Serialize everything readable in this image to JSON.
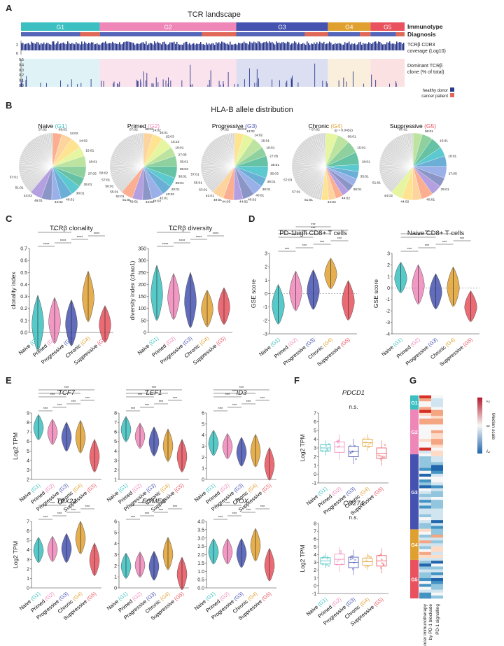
{
  "panels": {
    "A": {
      "letter": "A",
      "title": "TCR landscape",
      "groups": [
        {
          "label": "G1",
          "color": "#3bbfc0",
          "frac": 0.185
        },
        {
          "label": "G2",
          "color": "#ee86b8",
          "frac": 0.32
        },
        {
          "label": "G3",
          "color": "#4552b0",
          "frac": 0.215
        },
        {
          "label": "G4",
          "color": "#e0a030",
          "frac": 0.1
        },
        {
          "label": "G5",
          "color": "#e8515d",
          "frac": 0.08
        }
      ],
      "row_labels": {
        "immunotype": "Immunotype",
        "diagnosis": "Diagnosis"
      },
      "coverage": {
        "label": "TCRβ CDR3 coverage (Log10)",
        "ticks": [
          "2",
          "0"
        ]
      },
      "dominant": {
        "label": "Dominant TCRβ clone (% of total)",
        "ticks": [
          "0.5",
          "0.4",
          "0.3",
          "0.2",
          "0.1",
          "0.0"
        ]
      },
      "legend": [
        {
          "label": "healthy donor",
          "color": "#2a3a8c"
        },
        {
          "label": "cancer patient",
          "color": "#e06858"
        }
      ]
    },
    "B": {
      "letter": "B",
      "title": "HLA-B allele distribution",
      "pies": [
        {
          "name": "Naive",
          "group": "(G1)",
          "color": "#3bbfc0",
          "labels": [
            "07:02",
            "08:01",
            "13:02",
            "14:02",
            "15:01",
            "18:01",
            "27:05",
            "35:01",
            "38:01",
            "40:01",
            "44:02",
            "49:01",
            "44:03",
            "51:01",
            "57:01"
          ]
        },
        {
          "name": "Primed",
          "group": "(G2)",
          "color": "#ee86b8",
          "labels": [
            "07:02",
            "08:01",
            "14:02",
            "15:01",
            "15:03",
            "15:10",
            "18:01",
            "27:05",
            "35:01",
            "35:03",
            "38:01",
            "39:01",
            "40:01",
            "40:02",
            "42:01",
            "44:02",
            "44:03",
            "49:01",
            "51:01",
            "52:01",
            "55:01",
            "56:01",
            "57:01",
            "58:02"
          ]
        },
        {
          "name": "Progressive",
          "group": "(G3)",
          "color": "#4552b0",
          "labels": [
            "07:02",
            "08:01",
            "13:02",
            "14:02",
            "15:01",
            "18:01",
            "27:05",
            "35:01",
            "35:03",
            "38:01",
            "39:01",
            "40:01",
            "40:02",
            "44:02",
            "44:03",
            "49:01",
            "51:01",
            "53:01",
            "55:01",
            "57:01"
          ]
        },
        {
          "name": "Chronic",
          "group": "(G4)",
          "color": "#e0a030",
          "labels": [
            "* 07:02",
            "(p = 0.0452)",
            "08:01",
            "15:01",
            "18:01",
            "35:01",
            "38:01",
            "44:02",
            "44:03",
            "51:01",
            "57:01",
            "57:03"
          ]
        },
        {
          "name": "Suppressive",
          "group": "(G5)",
          "color": "#e8515d",
          "labels": [
            "07:02",
            "08:01",
            "15:01",
            "18:01",
            "27:05",
            "35:01",
            "40:01",
            "44:02",
            "44:03",
            "51:01"
          ]
        }
      ]
    },
    "C": {
      "letter": "C",
      "plots": [
        {
          "title": "TCRβ clonality",
          "ylabel": "clonality index",
          "ticks": [
            "0.0",
            "0.1",
            "0.2",
            "0.3",
            "0.4",
            "0.5",
            "0.6",
            "0.7"
          ],
          "sig": [
            "****",
            "****",
            "****",
            "****",
            "**"
          ]
        },
        {
          "title": "TCRβ diversity",
          "ylabel": "diversity index (chao1)",
          "ticks": [
            "0",
            "50",
            "100",
            "150",
            "200",
            "250",
            "300",
            "350"
          ],
          "sig": [
            "****",
            "****",
            "****",
            "****",
            "***"
          ]
        }
      ]
    },
    "D": {
      "letter": "D",
      "plots": [
        {
          "title": "PD-1high CD8+ T cells",
          "ylabel": "GSE score",
          "ticks": [
            "-3",
            "-2",
            "-1",
            "0",
            "1",
            "2",
            "3"
          ],
          "sig": [
            "***",
            "***",
            "***",
            "***",
            "***",
            "***",
            "***",
            "***"
          ]
        },
        {
          "title": "Naive CD8+ T cells",
          "ylabel": "GSE score",
          "ticks": [
            "-4",
            "-3",
            "-2",
            "-1",
            "0",
            "1",
            "2",
            "3"
          ],
          "sig": [
            "***",
            "***",
            "***",
            "***",
            "***",
            "***"
          ]
        }
      ]
    },
    "E": {
      "letter": "E",
      "ylabel": "Log2 TPM",
      "genes": [
        {
          "name": "TCF7",
          "ticks": [
            "2",
            "3",
            "4",
            "5",
            "6",
            "7",
            "8",
            "9"
          ]
        },
        {
          "name": "LEF1",
          "ticks": [
            "1",
            "2",
            "3",
            "4",
            "5",
            "6",
            "7",
            "8"
          ]
        },
        {
          "name": "ID3",
          "ticks": [
            "0",
            "1",
            "2",
            "3",
            "4",
            "5",
            "6"
          ]
        },
        {
          "name": "TBX21",
          "ticks": [
            "0",
            "1",
            "2",
            "3",
            "4",
            "5",
            "6",
            "7"
          ]
        },
        {
          "name": "EOMES",
          "ticks": [
            "0",
            "1",
            "2",
            "3",
            "4",
            "5",
            "6"
          ]
        },
        {
          "name": "TOX",
          "ticks": [
            "0.0",
            "0.5",
            "1.0",
            "1.5",
            "2.0",
            "2.5",
            "3.0",
            "3.5",
            "4.0"
          ]
        }
      ],
      "sig": "***"
    },
    "F": {
      "letter": "F",
      "ylabel": "Log2 TPM",
      "plots": [
        {
          "title": "PDCD1",
          "ns": "n.s.",
          "ticks": [
            "-1",
            "0",
            "1",
            "2",
            "3",
            "4",
            "5",
            "6",
            "7"
          ]
        },
        {
          "title": "CD274",
          "ns": "n.s.",
          "ticks": [
            "-1",
            "0",
            "1",
            "2",
            "3",
            "4",
            "5",
            "6",
            "7",
            "8"
          ]
        }
      ]
    },
    "G": {
      "letter": "G",
      "scale_label": "Median scale",
      "scale_ticks": [
        "2",
        "0",
        "-2"
      ],
      "columns": [
        "Cancer immunotherapy by PD-1 blockade",
        "PD-1 signalling"
      ]
    }
  },
  "categories": [
    {
      "name": "Naive",
      "group": "(G1)",
      "color": "#3bbfc0"
    },
    {
      "name": "Primed",
      "group": "(G2)",
      "color": "#ee86b8"
    },
    {
      "name": "Progressive",
      "group": "(G3)",
      "color": "#4552b0"
    },
    {
      "name": "Chronic",
      "group": "(G4)",
      "color": "#e0a030"
    },
    {
      "name": "Suppressive",
      "group": "(G5)",
      "color": "#e8515d"
    }
  ],
  "chart_data": [
    {
      "type": "violin",
      "title": "TCRβ clonality",
      "ylabel": "clonality index",
      "categories": [
        "Naive (G1)",
        "Primed (G2)",
        "Progressive (G3)",
        "Chronic (G4)",
        "Suppressive (G5)"
      ],
      "medians": [
        0.08,
        0.1,
        0.08,
        0.3,
        0.07
      ],
      "ylim": [
        0,
        0.7
      ]
    },
    {
      "type": "violin",
      "title": "TCRβ diversity",
      "ylabel": "diversity index (chao1)",
      "categories": [
        "Naive (G1)",
        "Primed (G2)",
        "Progressive (G3)",
        "Chronic (G4)",
        "Suppressive (G5)"
      ],
      "medians": [
        165,
        150,
        135,
        100,
        110
      ],
      "ylim": [
        0,
        350
      ]
    },
    {
      "type": "violin",
      "title": "PD-1high CD8+ T cells",
      "ylabel": "GSE score",
      "categories": [
        "Naive (G1)",
        "Primed (G2)",
        "Progressive (G3)",
        "Chronic (G4)",
        "Suppressive (G5)"
      ],
      "medians": [
        -0.8,
        0.2,
        0.3,
        1.5,
        -0.5
      ],
      "ylim": [
        -3,
        3
      ]
    },
    {
      "type": "violin",
      "title": "Naive CD8+ T cells",
      "ylabel": "GSE score",
      "categories": [
        "Naive (G1)",
        "Primed (G2)",
        "Progressive (G3)",
        "Chronic (G4)",
        "Suppressive (G5)"
      ],
      "medians": [
        0.9,
        0.3,
        -0.3,
        0.1,
        -1.6
      ],
      "ylim": [
        -4,
        3
      ]
    },
    {
      "type": "violin",
      "title": "TCF7",
      "ylabel": "Log2 TPM",
      "categories": [
        "Naive (G1)",
        "Primed (G2)",
        "Progressive (G3)",
        "Chronic (G4)",
        "Suppressive (G5)"
      ],
      "medians": [
        7.5,
        7.0,
        6.5,
        6.5,
        4.5
      ],
      "ylim": [
        2,
        9
      ]
    },
    {
      "type": "violin",
      "title": "LEF1",
      "ylabel": "Log2 TPM",
      "categories": [
        "Naive (G1)",
        "Primed (G2)",
        "Progressive (G3)",
        "Chronic (G4)",
        "Suppressive (G5)"
      ],
      "medians": [
        6.3,
        5.6,
        5.0,
        4.6,
        3.5
      ],
      "ylim": [
        1,
        8
      ]
    },
    {
      "type": "violin",
      "title": "ID3",
      "ylabel": "Log2 TPM",
      "categories": [
        "Naive (G1)",
        "Primed (G2)",
        "Progressive (G3)",
        "Chronic (G4)",
        "Suppressive (G5)"
      ],
      "medians": [
        3.3,
        3.0,
        2.5,
        2.6,
        1.4
      ],
      "ylim": [
        0,
        6
      ]
    },
    {
      "type": "violin",
      "title": "TBX21",
      "ylabel": "Log2 TPM",
      "categories": [
        "Naive (G1)",
        "Primed (G2)",
        "Progressive (G3)",
        "Chronic (G4)",
        "Suppressive (G5)"
      ],
      "medians": [
        4.0,
        4.1,
        4.2,
        5.3,
        3.0
      ],
      "ylim": [
        0,
        7
      ]
    },
    {
      "type": "violin",
      "title": "EOMES",
      "ylabel": "Log2 TPM",
      "categories": [
        "Naive (G1)",
        "Primed (G2)",
        "Progressive (G3)",
        "Chronic (G4)",
        "Suppressive (G5)"
      ],
      "medians": [
        2.0,
        2.1,
        2.0,
        3.1,
        1.3
      ],
      "ylim": [
        0,
        6
      ]
    },
    {
      "type": "violin",
      "title": "TOX",
      "ylabel": "Log2 TPM",
      "categories": [
        "Naive (G1)",
        "Primed (G2)",
        "Progressive (G3)",
        "Chronic (G4)",
        "Suppressive (G5)"
      ],
      "medians": [
        2.2,
        2.2,
        2.1,
        2.6,
        1.4
      ],
      "ylim": [
        0,
        4
      ]
    },
    {
      "type": "box",
      "title": "PDCD1",
      "ylabel": "Log2 TPM",
      "categories": [
        "Naive (G1)",
        "Primed (G2)",
        "Progressive (G3)",
        "Chronic (G4)",
        "Suppressive (G5)"
      ],
      "medians": [
        3.0,
        3.1,
        2.6,
        3.6,
        2.4
      ],
      "ylim": [
        -1,
        7
      ]
    },
    {
      "type": "box",
      "title": "CD274",
      "ylabel": "Log2 TPM",
      "categories": [
        "Naive (G1)",
        "Primed (G2)",
        "Progressive (G3)",
        "Chronic (G4)",
        "Suppressive (G5)"
      ],
      "medians": [
        3.2,
        3.4,
        3.0,
        3.1,
        3.2
      ],
      "ylim": [
        -1,
        8
      ]
    }
  ]
}
